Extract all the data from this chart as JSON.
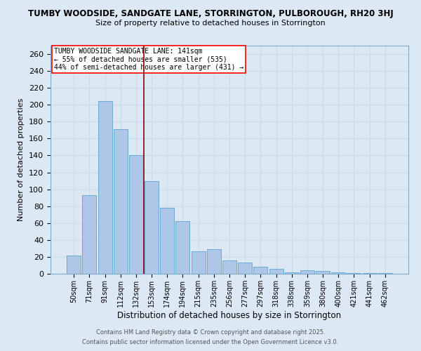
{
  "title": "TUMBY WOODSIDE, SANDGATE LANE, STORRINGTON, PULBOROUGH, RH20 3HJ",
  "subtitle": "Size of property relative to detached houses in Storrington",
  "xlabel": "Distribution of detached houses by size in Storrington",
  "ylabel": "Number of detached properties",
  "categories": [
    "50sqm",
    "71sqm",
    "91sqm",
    "112sqm",
    "132sqm",
    "153sqm",
    "174sqm",
    "194sqm",
    "215sqm",
    "235sqm",
    "256sqm",
    "277sqm",
    "297sqm",
    "318sqm",
    "338sqm",
    "359sqm",
    "380sqm",
    "400sqm",
    "421sqm",
    "441sqm",
    "462sqm"
  ],
  "values": [
    22,
    93,
    204,
    171,
    140,
    110,
    78,
    62,
    27,
    29,
    16,
    13,
    8,
    6,
    2,
    4,
    3,
    2,
    1,
    1,
    1
  ],
  "bar_color": "#aec6e8",
  "bar_edge_color": "#6aaad4",
  "grid_color": "#c8dcea",
  "background_color": "#dce8f4",
  "property_line_x": 4.5,
  "property_label": "TUMBY WOODSIDE SANDGATE LANE: 141sqm",
  "annotation_line1": "← 55% of detached houses are smaller (535)",
  "annotation_line2": "44% of semi-detached houses are larger (431) →",
  "footer1": "Contains HM Land Registry data © Crown copyright and database right 2025.",
  "footer2": "Contains public sector information licensed under the Open Government Licence v3.0.",
  "ylim": [
    0,
    270
  ],
  "yticks": [
    0,
    20,
    40,
    60,
    80,
    100,
    120,
    140,
    160,
    180,
    200,
    220,
    240,
    260
  ]
}
